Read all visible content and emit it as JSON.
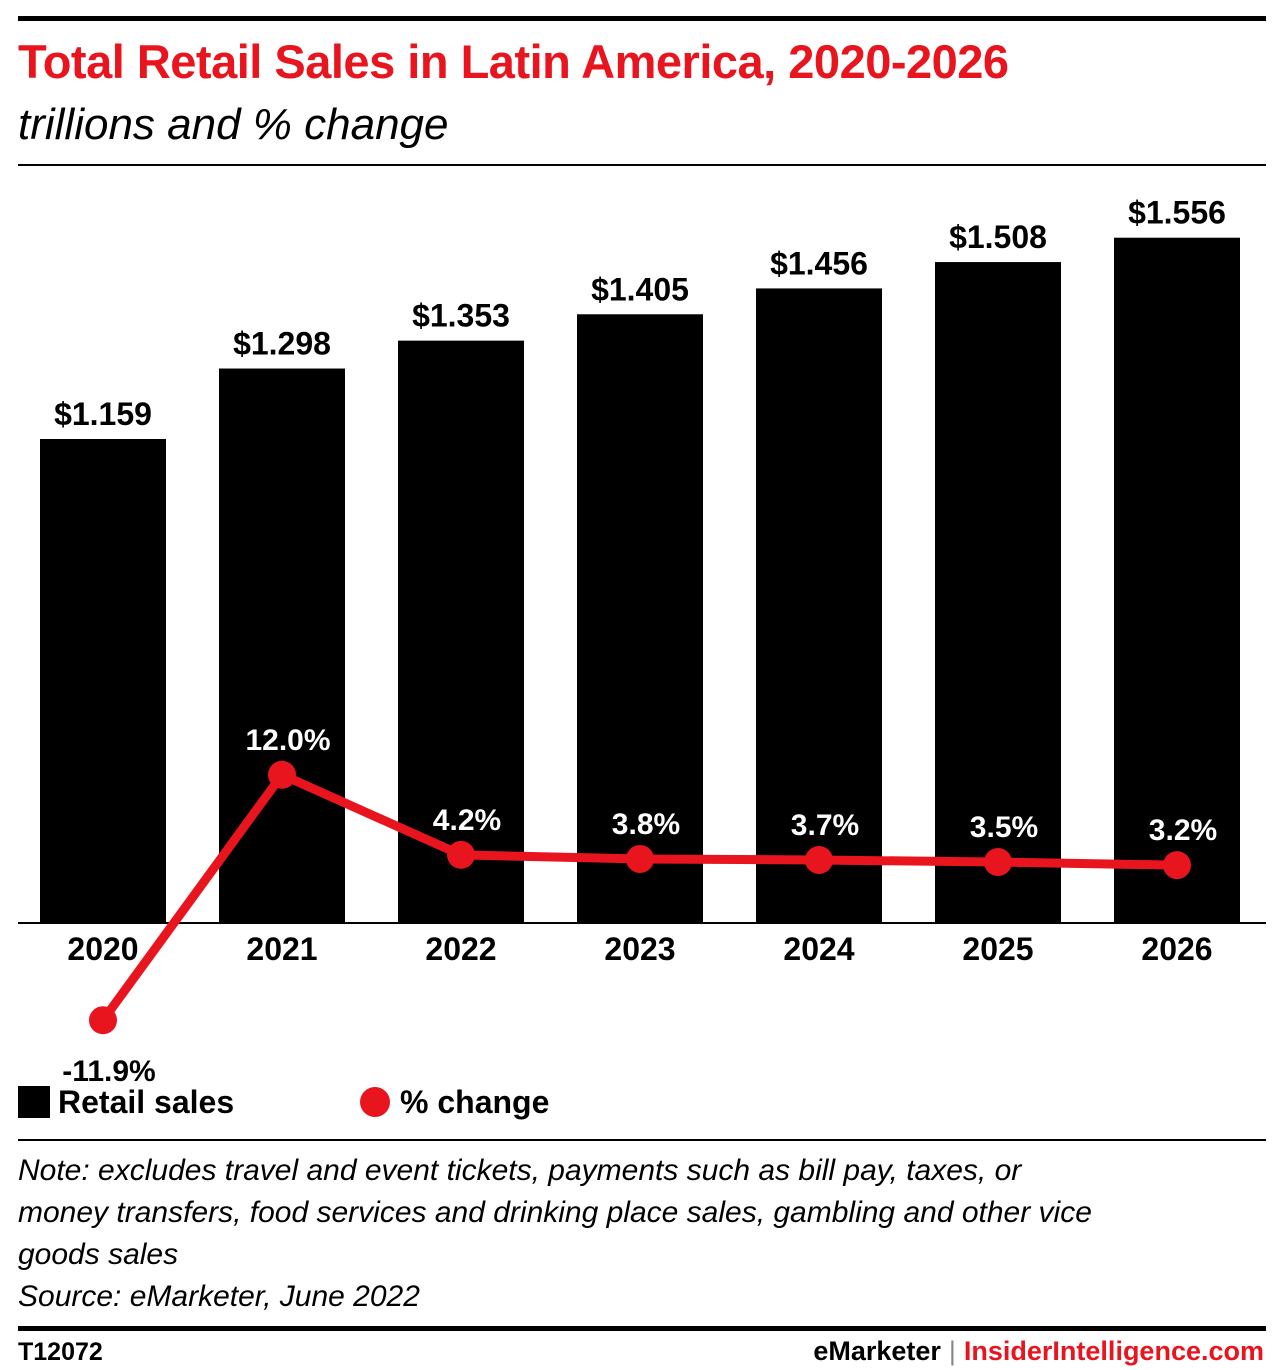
{
  "header": {
    "title": "Total Retail Sales in Latin America, 2020-2026",
    "subtitle": "trillions and % change"
  },
  "chart_data": {
    "type": "bar",
    "categories": [
      "2020",
      "2021",
      "2022",
      "2023",
      "2024",
      "2025",
      "2026"
    ],
    "series": [
      {
        "name": "Retail sales",
        "type": "bar",
        "values": [
          1.159,
          1.298,
          1.353,
          1.405,
          1.456,
          1.508,
          1.556
        ],
        "labels": [
          "$1.159",
          "$1.298",
          "$1.353",
          "$1.405",
          "$1.456",
          "$1.508",
          "$1.556"
        ],
        "color": "#000000"
      },
      {
        "name": "% change",
        "type": "line",
        "values": [
          -11.9,
          12.0,
          4.2,
          3.8,
          3.7,
          3.5,
          3.2
        ],
        "labels": [
          "-11.9%",
          "12.0%",
          "4.2%",
          "3.8%",
          "3.7%",
          "3.5%",
          "3.2%"
        ],
        "color": "#e8141e"
      }
    ],
    "grid": false,
    "legend_position": "bottom-left"
  },
  "legend": {
    "bar_label": "Retail sales",
    "line_label": "% change"
  },
  "footer": {
    "note_lines": [
      "Note: excludes travel and event tickets, payments such as bill pay, taxes, or",
      "money transfers, food services and drinking place sales, gambling and other vice",
      "goods sales"
    ],
    "source": "Source: eMarketer, June 2022",
    "chart_id": "T12072",
    "brand_left": "eMarketer",
    "brand_separator": "|",
    "brand_right": "InsiderIntelligence.com"
  },
  "colors": {
    "accent": "#e8141e",
    "bar": "#000000"
  }
}
